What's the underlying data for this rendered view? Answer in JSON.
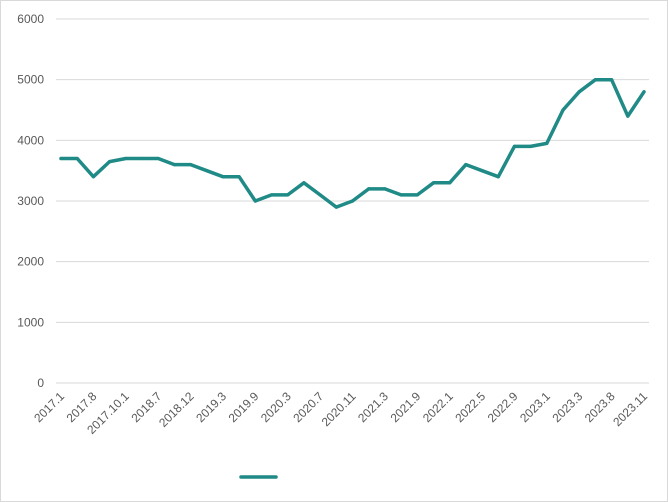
{
  "chart_data": {
    "type": "line",
    "title": "",
    "xlabel": "",
    "ylabel": "",
    "ylim": [
      0,
      6000
    ],
    "yticks": [
      0,
      1000,
      2000,
      3000,
      4000,
      5000,
      6000
    ],
    "grid": true,
    "legend_position": "bottom",
    "x_tick_labels": [
      "2017.1",
      "2017.8",
      "2017.10.1",
      "2018.7",
      "2018.12",
      "2019.3",
      "2019.9",
      "2020.3",
      "2020.7",
      "2020.11",
      "2021.3",
      "2021.9",
      "2022.1",
      "2022.5",
      "2022.9",
      "2023.1",
      "2023.3",
      "2023.8",
      "2023.11"
    ],
    "x_tick_indices": [
      0,
      2,
      4,
      6,
      8,
      10,
      12,
      14,
      16,
      18,
      20,
      22,
      24,
      26,
      28,
      30,
      32,
      34,
      36
    ],
    "series": [
      {
        "name": "",
        "color": "#1f8a86",
        "values": [
          3700,
          3700,
          3400,
          3650,
          3700,
          3700,
          3700,
          3600,
          3600,
          3500,
          3400,
          3400,
          3000,
          3100,
          3100,
          3300,
          3100,
          2900,
          3000,
          3200,
          3200,
          3100,
          3100,
          3300,
          3300,
          3600,
          3500,
          3400,
          3900,
          3900,
          3950,
          4500,
          4800,
          5000,
          5000,
          4400,
          4800
        ]
      }
    ]
  }
}
